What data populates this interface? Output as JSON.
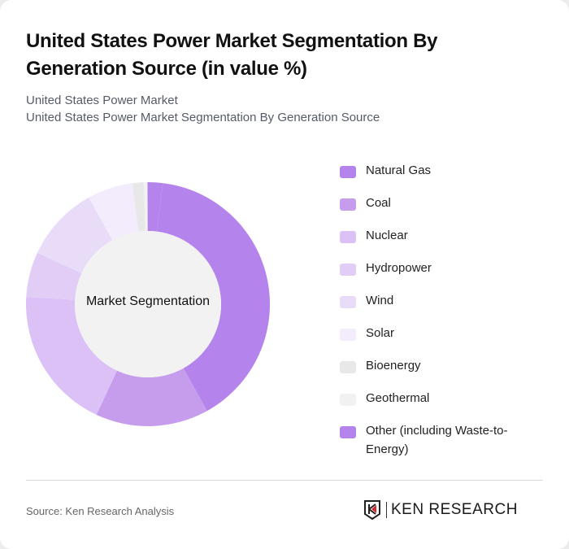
{
  "header": {
    "title": "United States Power Market Segmentation By Generation Source (in value %)",
    "subtitle_line1": "United States Power Market",
    "subtitle_line2": "United States Power Market Segmentation By Generation Source"
  },
  "chart": {
    "center_label": "Market Segmentation"
  },
  "legend": [
    {
      "label": "Natural Gas",
      "color": "#b483eb"
    },
    {
      "label": "Coal",
      "color": "#c69ded"
    },
    {
      "label": "Nuclear",
      "color": "#dbc1f6"
    },
    {
      "label": "Hydropower",
      "color": "#e1cdf6"
    },
    {
      "label": "Wind",
      "color": "#e9dcf9"
    },
    {
      "label": "Solar",
      "color": "#f3ecfc"
    },
    {
      "label": "Bioenergy",
      "color": "#e8e8e8"
    },
    {
      "label": "Geothermal",
      "color": "#f1f1f1"
    },
    {
      "label": "Other (including Waste-to-Energy)",
      "color": "#b483eb"
    }
  ],
  "footer": {
    "source": "Source: Ken Research Analysis",
    "logo_text": "KEN RESEARCH"
  },
  "chart_data": {
    "type": "pie",
    "variant": "donut",
    "title": "United States Power Market Segmentation By Generation Source (in value %)",
    "center_label": "Market Segmentation",
    "categories": [
      "Natural Gas",
      "Coal",
      "Nuclear",
      "Hydropower",
      "Wind",
      "Solar",
      "Bioenergy",
      "Geothermal",
      "Other (including Waste-to-Energy)"
    ],
    "values": [
      40,
      15,
      19,
      6,
      10,
      6,
      1.5,
      0.5,
      2
    ],
    "colors": [
      "#b483eb",
      "#c69ded",
      "#dbc1f6",
      "#e1cdf6",
      "#e9dcf9",
      "#f3ecfc",
      "#e8e8e8",
      "#f1f1f1",
      "#b483eb"
    ],
    "legend_position": "right",
    "unit": "%"
  }
}
